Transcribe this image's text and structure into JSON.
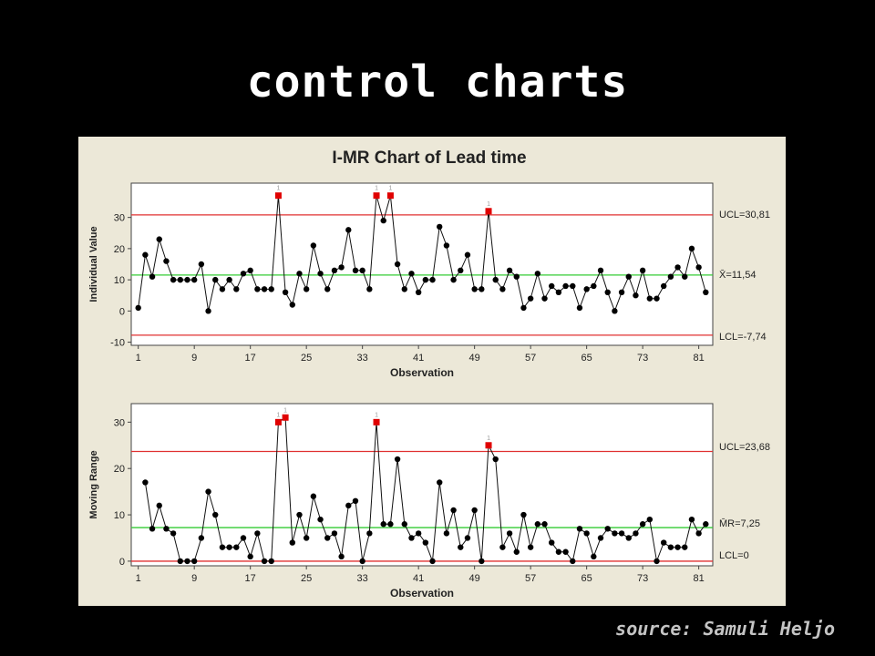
{
  "slide": {
    "title": "control charts",
    "source": "source: Samuli Heljo"
  },
  "colors": {
    "background": "#000000",
    "panel": "#ece8d8",
    "limit_line": "#e03030",
    "center_line": "#33cc33",
    "point": "#000000",
    "out_of_control_point": "#e00000"
  },
  "chart_data": [
    {
      "type": "line",
      "title": "I-MR Chart of Lead time",
      "xlabel": "Observation",
      "ylabel": "Individual Value",
      "xticks": [
        1,
        9,
        17,
        25,
        33,
        41,
        49,
        57,
        65,
        73,
        81
      ],
      "yticks": [
        -10,
        0,
        10,
        20,
        30
      ],
      "xlim": [
        0,
        83
      ],
      "ylim": [
        -11,
        41
      ],
      "grid": false,
      "limits": {
        "ucl": 30.81,
        "center": 11.54,
        "lcl": -7.74
      },
      "limit_labels": {
        "ucl": "UCL=30,81",
        "center": "X̄=11,54",
        "lcl": "LCL=-7,74"
      },
      "x": [
        1,
        2,
        3,
        4,
        5,
        6,
        7,
        8,
        9,
        10,
        11,
        12,
        13,
        14,
        15,
        16,
        17,
        18,
        19,
        20,
        21,
        22,
        23,
        24,
        25,
        26,
        27,
        28,
        29,
        30,
        31,
        32,
        33,
        34,
        35,
        36,
        37,
        38,
        39,
        40,
        41,
        42,
        43,
        44,
        45,
        46,
        47,
        48,
        49,
        50,
        51,
        52,
        53,
        54,
        55,
        56,
        57,
        58,
        59,
        60,
        61,
        62,
        63,
        64,
        65,
        66,
        67,
        68,
        69,
        70,
        71,
        72,
        73,
        74,
        75,
        76,
        77,
        78,
        79,
        80,
        81,
        82
      ],
      "values": [
        1,
        18,
        11,
        23,
        16,
        10,
        10,
        10,
        10,
        15,
        0,
        10,
        7,
        10,
        7,
        12,
        13,
        7,
        7,
        7,
        37,
        6,
        2,
        12,
        7,
        21,
        12,
        7,
        13,
        14,
        26,
        13,
        13,
        7,
        37,
        29,
        37,
        15,
        7,
        12,
        6,
        10,
        10,
        27,
        21,
        10,
        13,
        18,
        7,
        7,
        32,
        10,
        7,
        13,
        11,
        1,
        4,
        12,
        4,
        8,
        6,
        8,
        8,
        1,
        7,
        8,
        13,
        6,
        0,
        6,
        11,
        5,
        13,
        4,
        4,
        8,
        11,
        14,
        11,
        20,
        14,
        6
      ],
      "out_of_control": [
        21,
        35,
        37,
        51
      ]
    },
    {
      "type": "line",
      "xlabel": "Observation",
      "ylabel": "Moving Range",
      "xticks": [
        1,
        9,
        17,
        25,
        33,
        41,
        49,
        57,
        65,
        73,
        81
      ],
      "yticks": [
        0,
        10,
        20,
        30
      ],
      "xlim": [
        0,
        83
      ],
      "ylim": [
        -1,
        34
      ],
      "grid": false,
      "limits": {
        "ucl": 23.68,
        "center": 7.25,
        "lcl": 0
      },
      "limit_labels": {
        "ucl": "UCL=23,68",
        "center": "M̄R=7,25",
        "lcl": "LCL=0"
      },
      "x": [
        2,
        3,
        4,
        5,
        6,
        7,
        8,
        9,
        10,
        11,
        12,
        13,
        14,
        15,
        16,
        17,
        18,
        19,
        20,
        21,
        22,
        23,
        24,
        25,
        26,
        27,
        28,
        29,
        30,
        31,
        32,
        33,
        34,
        35,
        36,
        37,
        38,
        39,
        40,
        41,
        42,
        43,
        44,
        45,
        46,
        47,
        48,
        49,
        50,
        51,
        52,
        53,
        54,
        55,
        56,
        57,
        58,
        59,
        60,
        61,
        62,
        63,
        64,
        65,
        66,
        67,
        68,
        69,
        70,
        71,
        72,
        73,
        74,
        75,
        76,
        77,
        78,
        79,
        80,
        81,
        82
      ],
      "values": [
        17,
        7,
        12,
        7,
        6,
        0,
        0,
        0,
        5,
        15,
        10,
        3,
        3,
        3,
        5,
        1,
        6,
        0,
        0,
        30,
        31,
        4,
        10,
        5,
        14,
        9,
        5,
        6,
        1,
        12,
        13,
        0,
        6,
        30,
        8,
        8,
        22,
        8,
        5,
        6,
        4,
        0,
        17,
        6,
        11,
        3,
        5,
        11,
        0,
        25,
        22,
        3,
        6,
        2,
        10,
        3,
        8,
        8,
        4,
        2,
        2,
        0,
        7,
        6,
        1,
        5,
        7,
        6,
        6,
        5,
        6,
        8,
        9,
        0,
        4,
        3,
        3,
        3,
        9,
        6,
        8
      ],
      "out_of_control": [
        21,
        22,
        35,
        51
      ]
    }
  ]
}
